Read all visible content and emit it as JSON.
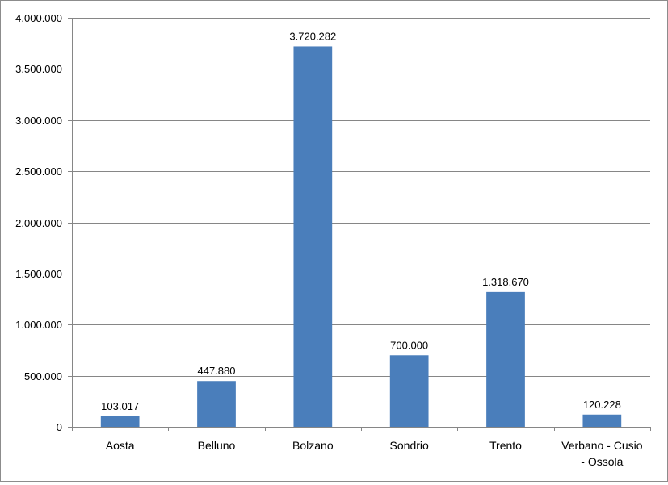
{
  "chart_data": {
    "type": "bar",
    "title": "",
    "xlabel": "",
    "ylabel": "",
    "categories": [
      [
        "Aosta"
      ],
      [
        "Belluno"
      ],
      [
        "Bolzano"
      ],
      [
        "Sondrio"
      ],
      [
        "Trento"
      ],
      [
        "Verbano - Cusio",
        "- Ossola"
      ]
    ],
    "values": [
      103017,
      447880,
      3720282,
      700000,
      1318670,
      120228
    ],
    "data_labels": [
      "103.017",
      "447.880",
      "3.720.282",
      "700.000",
      "1.318.670",
      "120.228"
    ],
    "ylim": [
      0,
      4000000
    ],
    "yticks": [
      0,
      500000,
      1000000,
      1500000,
      2000000,
      2500000,
      3000000,
      3500000,
      4000000
    ],
    "ytick_labels": [
      "0",
      "500.000",
      "1.000.000",
      "1.500.000",
      "2.000.000",
      "2.500.000",
      "3.000.000",
      "3.500.000",
      "4.000.000"
    ],
    "grid": true,
    "legend": "none",
    "colors": {
      "bar": "#4a7ebb",
      "grid": "#868686",
      "axis": "#868686"
    }
  }
}
